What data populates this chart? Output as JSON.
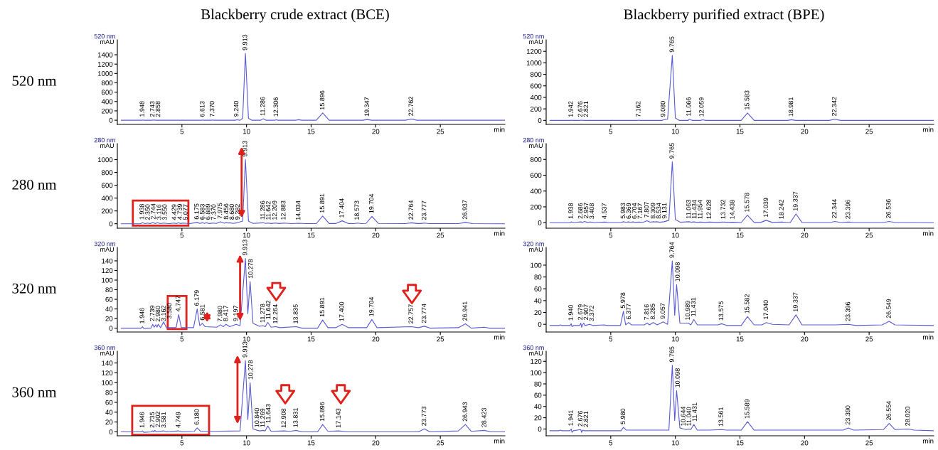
{
  "chart_data": [
    {
      "type": "line",
      "title": "520 nm",
      "xlabel": "min",
      "ylabel": "mAU",
      "xlim": [
        0,
        30
      ],
      "xticks": [
        5,
        10,
        15,
        20,
        25
      ],
      "ylim": [
        -90,
        1720
      ],
      "yticks": [
        0,
        200,
        400,
        600,
        800,
        1000,
        1200,
        1400
      ],
      "series": [
        {
          "color": "#5a5ad2",
          "x": [
            0.3,
            1.9,
            1.948,
            2.0,
            2.7,
            2.743,
            2.8,
            2.858,
            2.95,
            6.55,
            6.613,
            6.7,
            7.3,
            7.37,
            7.45,
            9.15,
            9.24,
            9.5,
            9.7,
            9.913,
            10.15,
            10.4,
            11.1,
            11.286,
            11.5,
            12.2,
            12.306,
            12.4,
            13.8,
            14.0,
            14.3,
            15.4,
            15.896,
            16.4,
            19.0,
            19.347,
            19.7,
            22.3,
            22.762,
            23.2,
            30
          ],
          "values": [
            0,
            0,
            5,
            0,
            0,
            5,
            0,
            5,
            0,
            0,
            5,
            0,
            0,
            5,
            0,
            0,
            10,
            0,
            40,
            1430,
            40,
            0,
            0,
            30,
            0,
            0,
            10,
            0,
            0,
            10,
            0,
            0,
            155,
            0,
            0,
            15,
            0,
            0,
            25,
            0,
            0
          ]
        }
      ],
      "annotations": [
        "Blackberry crude extract (BCE)",
        "520 nm",
        {
          "text": "1.948",
          "x": 1.948,
          "y": 5
        },
        {
          "text": "2.743",
          "x": 2.743,
          "y": 5
        },
        {
          "text": "2.858",
          "x": 2.858,
          "y": 5
        },
        {
          "text": "6.613",
          "x": 6.613,
          "y": 5
        },
        {
          "text": "7.370",
          "x": 7.37,
          "y": 5
        },
        {
          "text": "9.240",
          "x": 9.24,
          "y": 10
        },
        {
          "text": "9.913",
          "x": 9.913,
          "y": 1430
        },
        {
          "text": "11.286",
          "x": 11.286,
          "y": 30
        },
        {
          "text": "12.306",
          "x": 12.306,
          "y": 10
        },
        {
          "text": "15.896",
          "x": 15.896,
          "y": 155
        },
        {
          "text": "19.347",
          "x": 19.347,
          "y": 15
        },
        {
          "text": "22.762",
          "x": 22.762,
          "y": 25
        }
      ]
    },
    {
      "type": "line",
      "title": "520 nm",
      "xlabel": "min",
      "ylabel": "mAU",
      "xlim": [
        0,
        30
      ],
      "xticks": [
        5,
        10,
        15,
        20,
        25
      ],
      "ylim": [
        -70,
        1400
      ],
      "yticks": [
        0,
        200,
        400,
        600,
        800,
        1000,
        1200
      ],
      "series": [
        {
          "color": "#5a5ad2",
          "x": [
            0.3,
            1.9,
            1.942,
            2.0,
            2.6,
            2.676,
            2.75,
            2.821,
            2.9,
            7.1,
            7.162,
            7.25,
            9.0,
            9.08,
            9.4,
            9.765,
            10.0,
            10.3,
            11.0,
            11.066,
            11.3,
            12.0,
            12.059,
            12.4,
            15.1,
            15.583,
            16.1,
            18.7,
            18.981,
            19.3,
            21.9,
            22.342,
            22.8,
            30
          ],
          "values": [
            0,
            0,
            5,
            0,
            0,
            5,
            0,
            5,
            0,
            0,
            5,
            0,
            0,
            10,
            20,
            1130,
            40,
            0,
            0,
            20,
            0,
            0,
            10,
            0,
            0,
            130,
            0,
            0,
            12,
            0,
            0,
            20,
            0,
            0
          ]
        }
      ],
      "annotations": [
        "Blackberry purified extract (BPE)",
        {
          "text": "1.942",
          "x": 1.942,
          "y": 5
        },
        {
          "text": "2.676",
          "x": 2.676,
          "y": 5
        },
        {
          "text": "2.821",
          "x": 2.821,
          "y": 5
        },
        {
          "text": "7.162",
          "x": 7.162,
          "y": 5
        },
        {
          "text": "9.080",
          "x": 9.08,
          "y": 10
        },
        {
          "text": "9.765",
          "x": 9.765,
          "y": 1130
        },
        {
          "text": "11.066",
          "x": 11.066,
          "y": 20
        },
        {
          "text": "12.059",
          "x": 12.059,
          "y": 10
        },
        {
          "text": "15.583",
          "x": 15.583,
          "y": 130
        },
        {
          "text": "18.981",
          "x": 18.981,
          "y": 12
        },
        {
          "text": "22.342",
          "x": 22.342,
          "y": 20
        }
      ]
    },
    {
      "type": "line",
      "title": "280 nm",
      "xlabel": "min",
      "ylabel": "mAU",
      "xlim": [
        0,
        30
      ],
      "xticks": [
        5,
        10,
        15,
        20,
        25
      ],
      "ylim": [
        -70,
        1250
      ],
      "yticks": [
        0,
        200,
        400,
        600,
        800,
        1000
      ],
      "series": [
        {
          "color": "#5a5ad2",
          "x": [
            0.3,
            1.8,
            1.938,
            2.15,
            2.35,
            2.55,
            2.744,
            2.93,
            3.116,
            3.33,
            3.55,
            4.0,
            4.429,
            4.58,
            4.739,
            4.9,
            5.077,
            5.6,
            6.175,
            6.38,
            6.583,
            6.74,
            6.889,
            7.13,
            7.37,
            7.67,
            7.975,
            8.3,
            8.456,
            8.57,
            8.68,
            8.98,
            9.282,
            9.7,
            9.913,
            10.15,
            10.5,
            11.286,
            11.46,
            11.642,
            11.92,
            12.209,
            12.55,
            12.883,
            13.5,
            14.034,
            14.6,
            15.4,
            15.891,
            16.4,
            16.9,
            17.404,
            17.9,
            18.3,
            18.573,
            18.9,
            19.25,
            19.704,
            20.2,
            22.3,
            22.764,
            23.2,
            23.5,
            23.777,
            24.1,
            26.4,
            26.937,
            27.5,
            30
          ],
          "values": [
            0,
            0,
            15,
            2,
            10,
            2,
            20,
            3,
            15,
            2,
            10,
            2,
            10,
            3,
            15,
            3,
            10,
            2,
            20,
            5,
            15,
            5,
            15,
            3,
            10,
            5,
            30,
            8,
            20,
            10,
            15,
            5,
            15,
            40,
            1000,
            40,
            5,
            15,
            5,
            10,
            3,
            10,
            3,
            10,
            2,
            8,
            2,
            2,
            120,
            3,
            3,
            45,
            3,
            2,
            10,
            2,
            5,
            115,
            5,
            2,
            15,
            3,
            3,
            10,
            2,
            2,
            20,
            2,
            0
          ]
        }
      ],
      "annotations": [
        "280 nm",
        {
          "text": "1.938",
          "x": 1.938,
          "y": 15
        },
        {
          "text": "2.350",
          "x": 2.35,
          "y": 10
        },
        {
          "text": "2.744",
          "x": 2.744,
          "y": 20
        },
        {
          "text": "3.116",
          "x": 3.116,
          "y": 15
        },
        {
          "text": "3.550",
          "x": 3.55,
          "y": 10
        },
        {
          "text": "4.429",
          "x": 4.429,
          "y": 10
        },
        {
          "text": "4.739",
          "x": 4.739,
          "y": 15
        },
        {
          "text": "5.077",
          "x": 5.077,
          "y": 10
        },
        {
          "text": "6.175",
          "x": 6.175,
          "y": 20
        },
        {
          "text": "6.583",
          "x": 6.583,
          "y": 15
        },
        {
          "text": "6.889",
          "x": 6.889,
          "y": 15
        },
        {
          "text": "7.370",
          "x": 7.37,
          "y": 10
        },
        {
          "text": "7.975",
          "x": 7.975,
          "y": 30
        },
        {
          "text": "8.456",
          "x": 8.456,
          "y": 20
        },
        {
          "text": "8.680",
          "x": 8.68,
          "y": 15
        },
        {
          "text": "9.282",
          "x": 9.282,
          "y": 15
        },
        {
          "text": "9.913",
          "x": 9.913,
          "y": 1000
        },
        {
          "text": "11.286",
          "x": 11.286,
          "y": 15
        },
        {
          "text": "11.642",
          "x": 11.642,
          "y": 10
        },
        {
          "text": "12.209",
          "x": 12.209,
          "y": 10
        },
        {
          "text": "12.883",
          "x": 12.883,
          "y": 10
        },
        {
          "text": "14.034",
          "x": 14.034,
          "y": 8
        },
        {
          "text": "15.891",
          "x": 15.891,
          "y": 120
        },
        {
          "text": "17.404",
          "x": 17.404,
          "y": 45
        },
        {
          "text": "18.573",
          "x": 18.573,
          "y": 10
        },
        {
          "text": "19.704",
          "x": 19.704,
          "y": 115
        },
        {
          "text": "22.764",
          "x": 22.764,
          "y": 15
        },
        {
          "text": "23.777",
          "x": 23.777,
          "y": 10
        },
        {
          "text": "26.937",
          "x": 26.937,
          "y": 20
        }
      ]
    },
    {
      "type": "line",
      "title": "280 nm",
      "xlabel": "min",
      "ylabel": "mAU",
      "xlim": [
        0,
        30
      ],
      "xticks": [
        5,
        10,
        15,
        20,
        25
      ],
      "ylim": [
        -70,
        1000
      ],
      "yticks": [
        0,
        200,
        400,
        600,
        800
      ],
      "series": [
        {
          "color": "#5a5ad2",
          "x": [
            0.3,
            1.85,
            1.938,
            2.1,
            2.686,
            2.82,
            2.957,
            3.2,
            3.408,
            3.8,
            4.537,
            4.8,
            5.8,
            5.983,
            6.18,
            6.369,
            6.55,
            6.704,
            6.95,
            7.167,
            7.5,
            7.807,
            8.05,
            8.309,
            8.42,
            8.534,
            8.8,
            9.131,
            9.5,
            9.765,
            10.0,
            10.4,
            11.063,
            11.25,
            11.434,
            11.7,
            11.954,
            12.3,
            12.628,
            13.2,
            13.732,
            14.1,
            14.438,
            15.1,
            15.578,
            16.1,
            16.6,
            17.039,
            17.5,
            18.242,
            18.7,
            18.9,
            19.337,
            19.8,
            22.0,
            22.344,
            22.8,
            23.396,
            23.8,
            26.1,
            26.536,
            27.0,
            30
          ],
          "values": [
            0,
            0,
            10,
            2,
            10,
            3,
            15,
            3,
            8,
            2,
            8,
            2,
            2,
            12,
            4,
            10,
            4,
            10,
            3,
            8,
            4,
            25,
            6,
            12,
            8,
            12,
            5,
            12,
            30,
            770,
            40,
            5,
            12,
            5,
            10,
            3,
            8,
            3,
            8,
            3,
            8,
            3,
            5,
            2,
            95,
            3,
            3,
            30,
            3,
            8,
            2,
            3,
            110,
            3,
            2,
            15,
            2,
            8,
            2,
            2,
            15,
            2,
            0
          ]
        }
      ],
      "annotations": [
        {
          "text": "1.938",
          "x": 1.938,
          "y": 10
        },
        {
          "text": "2.686",
          "x": 2.686,
          "y": 10
        },
        {
          "text": "2.957",
          "x": 2.957,
          "y": 15
        },
        {
          "text": "3.408",
          "x": 3.408,
          "y": 8
        },
        {
          "text": "4.537",
          "x": 4.537,
          "y": 8
        },
        {
          "text": "5.983",
          "x": 5.983,
          "y": 12
        },
        {
          "text": "6.369",
          "x": 6.369,
          "y": 10
        },
        {
          "text": "6.704",
          "x": 6.704,
          "y": 10
        },
        {
          "text": "7.167",
          "x": 7.167,
          "y": 8
        },
        {
          "text": "7.807",
          "x": 7.807,
          "y": 25
        },
        {
          "text": "8.309",
          "x": 8.309,
          "y": 12
        },
        {
          "text": "8.534",
          "x": 8.534,
          "y": 12
        },
        {
          "text": "9.131",
          "x": 9.131,
          "y": 12
        },
        {
          "text": "9.765",
          "x": 9.765,
          "y": 770
        },
        {
          "text": "11.063",
          "x": 11.063,
          "y": 12
        },
        {
          "text": "11.434",
          "x": 11.434,
          "y": 10
        },
        {
          "text": "11.954",
          "x": 11.954,
          "y": 8
        },
        {
          "text": "12.628",
          "x": 12.628,
          "y": 8
        },
        {
          "text": "13.732",
          "x": 13.732,
          "y": 8
        },
        {
          "text": "14.438",
          "x": 14.438,
          "y": 5
        },
        {
          "text": "15.578",
          "x": 15.578,
          "y": 95
        },
        {
          "text": "17.039",
          "x": 17.039,
          "y": 30
        },
        {
          "text": "18.242",
          "x": 18.242,
          "y": 8
        },
        {
          "text": "19.337",
          "x": 19.337,
          "y": 110
        },
        {
          "text": "22.344",
          "x": 22.344,
          "y": 15
        },
        {
          "text": "23.396",
          "x": 23.396,
          "y": 8
        },
        {
          "text": "26.536",
          "x": 26.536,
          "y": 15
        }
      ]
    },
    {
      "type": "line",
      "title": "320 nm",
      "xlabel": "min",
      "ylabel": "mAU",
      "xlim": [
        0,
        30
      ],
      "xticks": [
        5,
        10,
        15,
        20,
        25
      ],
      "ylim": [
        -8,
        168
      ],
      "yticks": [
        0,
        20,
        40,
        60,
        80,
        100,
        120,
        140
      ],
      "series": [
        {
          "color": "#5a5ad2",
          "x": [
            0.3,
            1.85,
            1.946,
            2.05,
            2.6,
            2.739,
            2.85,
            2.98,
            3.07,
            3.162,
            3.35,
            3.58,
            3.8,
            4.55,
            4.747,
            4.95,
            5.9,
            6.179,
            6.38,
            6.581,
            6.8,
            7.7,
            7.98,
            8.2,
            8.417,
            8.7,
            9.197,
            9.5,
            9.913,
            10.1,
            10.278,
            10.5,
            11.0,
            11.278,
            11.45,
            11.642,
            11.9,
            12.264,
            12.6,
            13.835,
            14.3,
            15.5,
            15.891,
            16.3,
            16.9,
            17.4,
            17.9,
            19.3,
            19.704,
            20.1,
            22.757,
            23.3,
            23.774,
            24.2,
            26.4,
            26.941,
            27.4,
            28.4,
            28.8,
            30
          ],
          "values": [
            0,
            0,
            3,
            -1,
            0,
            8,
            2,
            7,
            2,
            8,
            1,
            13,
            1,
            1,
            28,
            1,
            1,
            40,
            5,
            10,
            3,
            2,
            7,
            3,
            8,
            3,
            8,
            5,
            145,
            30,
            97,
            10,
            4,
            5,
            3,
            12,
            2,
            3,
            1,
            3,
            0,
            0,
            17,
            1,
            1,
            8,
            1,
            1,
            18,
            1,
            3,
            1,
            4,
            0,
            1,
            9,
            0,
            2,
            0,
            0
          ]
        }
      ],
      "annotations": [
        "320 nm",
        {
          "text": "1.946",
          "x": 1.946,
          "y": 3
        },
        {
          "text": "2.739",
          "x": 2.739,
          "y": 8
        },
        {
          "text": "2.980",
          "x": 2.98,
          "y": 7
        },
        {
          "text": "3.162",
          "x": 3.162,
          "y": 8
        },
        {
          "text": "3.580",
          "x": 3.58,
          "y": 13
        },
        {
          "text": "4.747",
          "x": 4.747,
          "y": 28
        },
        {
          "text": "6.179",
          "x": 6.179,
          "y": 40
        },
        {
          "text": "6.581",
          "x": 6.581,
          "y": 10
        },
        {
          "text": "7.980",
          "x": 7.98,
          "y": 7
        },
        {
          "text": "8.417",
          "x": 8.417,
          "y": 8
        },
        {
          "text": "9.197",
          "x": 9.197,
          "y": 8
        },
        {
          "text": "9.913",
          "x": 9.913,
          "y": 145
        },
        {
          "text": "10.278",
          "x": 10.278,
          "y": 97
        },
        {
          "text": "11.278",
          "x": 11.278,
          "y": 5
        },
        {
          "text": "11.642",
          "x": 11.642,
          "y": 12
        },
        {
          "text": "12.264",
          "x": 12.264,
          "y": 3
        },
        {
          "text": "13.835",
          "x": 13.835,
          "y": 3
        },
        {
          "text": "15.891",
          "x": 15.891,
          "y": 17
        },
        {
          "text": "17.400",
          "x": 17.4,
          "y": 8
        },
        {
          "text": "19.704",
          "x": 19.704,
          "y": 18
        },
        {
          "text": "22.757",
          "x": 22.757,
          "y": 3
        },
        {
          "text": "23.774",
          "x": 23.774,
          "y": 4
        },
        {
          "text": "26.941",
          "x": 26.941,
          "y": 9
        }
      ]
    },
    {
      "type": "line",
      "title": "320 nm",
      "xlabel": "min",
      "ylabel": "mAU",
      "xlim": [
        0,
        30
      ],
      "xticks": [
        5,
        10,
        15,
        20,
        25
      ],
      "ylim": [
        -13,
        130
      ],
      "yticks": [
        0,
        20,
        40,
        60,
        80,
        100
      ],
      "series": [
        {
          "color": "#5a5ad2",
          "x": [
            0.3,
            1.0,
            1.1,
            1.2,
            1.85,
            1.94,
            2.0,
            2.1,
            2.6,
            2.679,
            2.75,
            2.82,
            2.907,
            3.0,
            3.372,
            3.6,
            4.5,
            4.7,
            5.75,
            5.978,
            6.15,
            6.377,
            6.6,
            7.6,
            7.816,
            8.0,
            8.285,
            8.6,
            9.057,
            9.4,
            9.764,
            9.95,
            10.098,
            10.35,
            10.989,
            11.2,
            11.431,
            11.7,
            13.3,
            13.575,
            14.0,
            15.1,
            15.582,
            16.1,
            16.7,
            17.04,
            17.5,
            18.8,
            19.337,
            19.8,
            22.4,
            23.396,
            24.0,
            26.0,
            26.549,
            27.0,
            30
          ],
          "values": [
            -2,
            -2,
            -1,
            -2,
            -2,
            1,
            -4,
            -2,
            -2,
            2,
            -5,
            -1,
            2,
            -2,
            0,
            -2,
            -1,
            -2,
            -2,
            22,
            -1,
            3,
            -1,
            -1,
            2,
            -1,
            3,
            -1,
            4,
            0,
            107,
            15,
            67,
            2,
            2,
            -1,
            8,
            -1,
            -1,
            1,
            -2,
            -2,
            13,
            -1,
            -1,
            3,
            0,
            -1,
            16,
            -1,
            -1,
            0,
            -2,
            -1,
            5,
            -1,
            -2
          ]
        }
      ],
      "annotations": [
        {
          "text": "1.940",
          "x": 1.94,
          "y": 1
        },
        {
          "text": "2.679",
          "x": 2.679,
          "y": 2
        },
        {
          "text": "2.907",
          "x": 2.907,
          "y": 2
        },
        {
          "text": "3.372",
          "x": 3.372,
          "y": 0
        },
        {
          "text": "5.978",
          "x": 5.978,
          "y": 22
        },
        {
          "text": "6.377",
          "x": 6.377,
          "y": 3
        },
        {
          "text": "7.816",
          "x": 7.816,
          "y": 2
        },
        {
          "text": "8.285",
          "x": 8.285,
          "y": 3
        },
        {
          "text": "9.057",
          "x": 9.057,
          "y": 4
        },
        {
          "text": "9.764",
          "x": 9.764,
          "y": 107
        },
        {
          "text": "10.098",
          "x": 10.098,
          "y": 67
        },
        {
          "text": "10.989",
          "x": 10.989,
          "y": 2
        },
        {
          "text": "11.431",
          "x": 11.431,
          "y": 8
        },
        {
          "text": "13.575",
          "x": 13.575,
          "y": 1
        },
        {
          "text": "15.582",
          "x": 15.582,
          "y": 13
        },
        {
          "text": "17.040",
          "x": 17.04,
          "y": 3
        },
        {
          "text": "19.337",
          "x": 19.337,
          "y": 16
        },
        {
          "text": "23.396",
          "x": 23.396,
          "y": 0
        },
        {
          "text": "26.549",
          "x": 26.549,
          "y": 5
        }
      ]
    },
    {
      "type": "line",
      "title": "360 nm",
      "xlabel": "min",
      "ylabel": "mAU",
      "xlim": [
        0,
        30
      ],
      "xticks": [
        5,
        10,
        15,
        20,
        25
      ],
      "ylim": [
        -8,
        164
      ],
      "yticks": [
        0,
        20,
        40,
        60,
        80,
        100,
        120,
        140
      ],
      "series": [
        {
          "color": "#5a5ad2",
          "x": [
            0.3,
            1.85,
            1.946,
            2.05,
            2.6,
            2.735,
            2.82,
            2.902,
            3.0,
            3.581,
            3.8,
            4.749,
            5.0,
            5.95,
            6.18,
            6.45,
            7.5,
            9.5,
            9.913,
            10.1,
            10.278,
            10.5,
            10.84,
            11.05,
            11.269,
            11.45,
            11.643,
            11.9,
            12.908,
            13.4,
            13.831,
            14.3,
            15.5,
            15.896,
            16.3,
            17.143,
            17.8,
            23.3,
            23.773,
            24.2,
            26.4,
            26.943,
            27.4,
            28.423,
            28.9,
            30
          ],
          "values": [
            0,
            0,
            2,
            -1,
            0,
            2,
            0,
            3,
            0,
            2,
            0,
            2,
            0,
            1,
            8,
            1,
            1,
            2,
            145,
            25,
            100,
            6,
            3,
            2,
            3,
            2,
            12,
            1,
            2,
            1,
            3,
            0,
            0,
            15,
            1,
            2,
            0,
            0,
            6,
            0,
            2,
            15,
            1,
            3,
            0,
            0
          ]
        }
      ],
      "annotations": [
        "360 nm",
        {
          "text": "1.946",
          "x": 1.946,
          "y": 2
        },
        {
          "text": "2.735",
          "x": 2.735,
          "y": 2
        },
        {
          "text": "2.902",
          "x": 2.902,
          "y": 3
        },
        {
          "text": "3.581",
          "x": 3.581,
          "y": 2
        },
        {
          "text": "4.749",
          "x": 4.749,
          "y": 2
        },
        {
          "text": "6.180",
          "x": 6.18,
          "y": 8
        },
        {
          "text": "9.913",
          "x": 9.913,
          "y": 145
        },
        {
          "text": "10.278",
          "x": 10.278,
          "y": 100
        },
        {
          "text": "10.840",
          "x": 10.84,
          "y": 3
        },
        {
          "text": "11.269",
          "x": 11.269,
          "y": 3
        },
        {
          "text": "11.643",
          "x": 11.643,
          "y": 12
        },
        {
          "text": "12.908",
          "x": 12.908,
          "y": 2
        },
        {
          "text": "13.831",
          "x": 13.831,
          "y": 3
        },
        {
          "text": "15.896",
          "x": 15.896,
          "y": 15
        },
        {
          "text": "17.143",
          "x": 17.143,
          "y": 2
        },
        {
          "text": "23.773",
          "x": 23.773,
          "y": 6
        },
        {
          "text": "26.943",
          "x": 26.943,
          "y": 15
        },
        {
          "text": "28.423",
          "x": 28.423,
          "y": 3
        }
      ]
    },
    {
      "type": "line",
      "title": "360 nm",
      "xlabel": "min",
      "ylabel": "mAU",
      "xlim": [
        0,
        30
      ],
      "xticks": [
        5,
        10,
        15,
        20,
        25
      ],
      "ylim": [
        -12,
        138
      ],
      "yticks": [
        0,
        20,
        40,
        60,
        80,
        100,
        120
      ],
      "series": [
        {
          "color": "#5a5ad2",
          "x": [
            0.3,
            1.0,
            1.1,
            1.2,
            1.85,
            1.941,
            2.0,
            2.1,
            2.676,
            2.75,
            2.821,
            2.95,
            5.8,
            5.98,
            6.2,
            9.5,
            9.765,
            9.95,
            10.098,
            10.35,
            10.644,
            10.85,
            11.04,
            11.2,
            11.431,
            11.7,
            12.6,
            13.561,
            14.0,
            15.1,
            15.589,
            16.1,
            23.0,
            23.39,
            23.8,
            26.1,
            26.554,
            27.0,
            28.02,
            28.5,
            30
          ],
          "values": [
            -3,
            -3,
            -2,
            -3,
            -3,
            0,
            -6,
            -3,
            -1,
            -6,
            -2,
            -3,
            -3,
            3,
            -2,
            -2,
            113,
            15,
            68,
            2,
            0,
            -1,
            0,
            -1,
            8,
            -2,
            -2,
            -1,
            -2,
            -2,
            13,
            -2,
            -2,
            2,
            -2,
            -1,
            10,
            -1,
            0,
            -2,
            -3
          ]
        }
      ],
      "annotations": [
        {
          "text": "1.941",
          "x": 1.941,
          "y": 0
        },
        {
          "text": "2.676",
          "x": 2.676,
          "y": -1
        },
        {
          "text": "2.821",
          "x": 2.821,
          "y": -2
        },
        {
          "text": "5.980",
          "x": 5.98,
          "y": 3
        },
        {
          "text": "9.765",
          "x": 9.765,
          "y": 113
        },
        {
          "text": "10.098",
          "x": 10.098,
          "y": 68
        },
        {
          "text": "10.644",
          "x": 10.644,
          "y": 0
        },
        {
          "text": "11.040",
          "x": 11.04,
          "y": 0
        },
        {
          "text": "11.431",
          "x": 11.431,
          "y": 8
        },
        {
          "text": "13.561",
          "x": 13.561,
          "y": -1
        },
        {
          "text": "15.589",
          "x": 15.589,
          "y": 13
        },
        {
          "text": "23.390",
          "x": 23.39,
          "y": 2
        },
        {
          "text": "26.554",
          "x": 26.554,
          "y": 10
        },
        {
          "text": "28.020",
          "x": 28.02,
          "y": 0
        }
      ]
    }
  ]
}
